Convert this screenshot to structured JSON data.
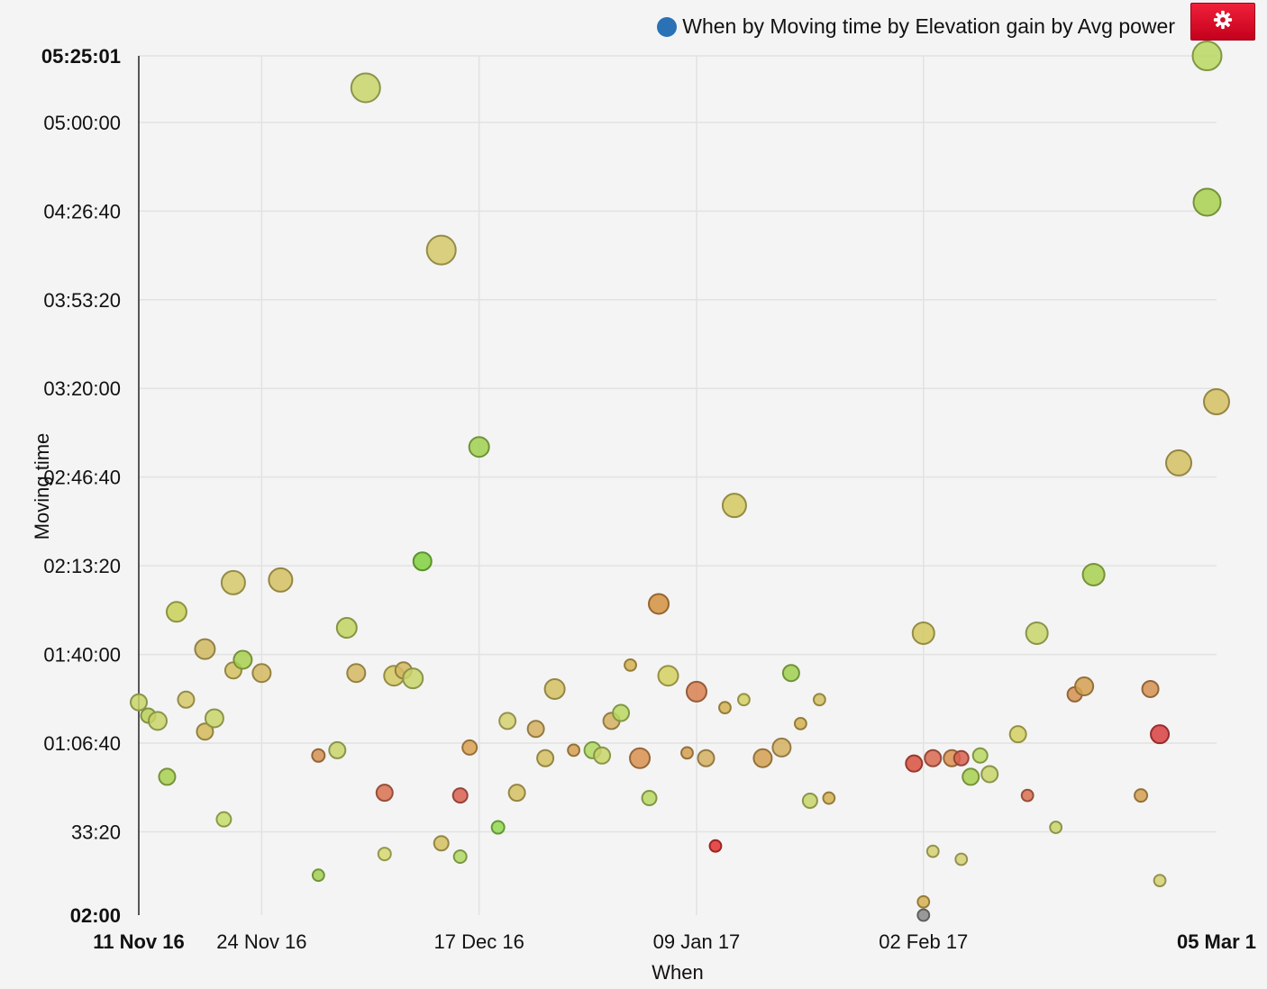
{
  "legend": {
    "label": "When by Moving time by Elevation gain by Avg power",
    "dot_color": "#2a72b5"
  },
  "settings": {
    "icon": "gear-icon",
    "color": "#e0102a"
  },
  "chart_data": {
    "type": "scatter",
    "title": "",
    "xlabel": "When",
    "ylabel": "Moving time",
    "x_axis": {
      "type": "date",
      "range": [
        "2016-11-11",
        "2017-03-05"
      ],
      "ticks": [
        {
          "value": "2016-11-11",
          "label": "11 Nov 16",
          "bold": true
        },
        {
          "value": "2016-11-24",
          "label": "24 Nov 16",
          "bold": false
        },
        {
          "value": "2016-12-17",
          "label": "17 Dec 16",
          "bold": false
        },
        {
          "value": "2017-01-09",
          "label": "09 Jan 17",
          "bold": false
        },
        {
          "value": "2017-02-02",
          "label": "02 Feb 17",
          "bold": false
        },
        {
          "value": "2017-03-05",
          "label": "05 Mar 1",
          "bold": true
        }
      ]
    },
    "y_axis": {
      "range": [
        "00:02:00",
        "05:25:01"
      ],
      "ticks": [
        {
          "value": "00:02:00",
          "label": "02:00",
          "bold": true
        },
        {
          "value": "00:33:20",
          "label": "33:20",
          "bold": false
        },
        {
          "value": "01:06:40",
          "label": "01:06:40",
          "bold": false
        },
        {
          "value": "01:40:00",
          "label": "01:40:00",
          "bold": false
        },
        {
          "value": "02:13:20",
          "label": "02:13:20",
          "bold": false
        },
        {
          "value": "02:46:40",
          "label": "02:46:40",
          "bold": false
        },
        {
          "value": "03:20:00",
          "label": "03:20:00",
          "bold": false
        },
        {
          "value": "03:53:20",
          "label": "03:53:20",
          "bold": false
        },
        {
          "value": "04:26:40",
          "label": "04:26:40",
          "bold": false
        },
        {
          "value": "05:00:00",
          "label": "05:00:00",
          "bold": false
        },
        {
          "value": "05:25:01",
          "label": "05:25:01",
          "bold": true
        }
      ]
    },
    "grid": true,
    "legend_position": "top-right",
    "size_encoding": "Elevation gain",
    "color_encoding": "Avg power",
    "points": [
      {
        "x": "2016-11-11",
        "y": "01:22:00",
        "size": 0.25,
        "color": "#c8d468"
      },
      {
        "x": "2016-11-12",
        "y": "01:17:00",
        "size": 0.2,
        "color": "#b8d058"
      },
      {
        "x": "2016-11-13",
        "y": "01:15:00",
        "size": 0.3,
        "color": "#c8d468"
      },
      {
        "x": "2016-11-14",
        "y": "00:54:00",
        "size": 0.25,
        "color": "#a8d050"
      },
      {
        "x": "2016-11-15",
        "y": "01:56:00",
        "size": 0.35,
        "color": "#c8d058"
      },
      {
        "x": "2016-11-16",
        "y": "01:23:00",
        "size": 0.25,
        "color": "#d4c868"
      },
      {
        "x": "2016-11-18",
        "y": "01:42:00",
        "size": 0.35,
        "color": "#d0b860"
      },
      {
        "x": "2016-11-18",
        "y": "01:11:00",
        "size": 0.25,
        "color": "#d4b858"
      },
      {
        "x": "2016-11-19",
        "y": "01:16:00",
        "size": 0.3,
        "color": "#c8d468"
      },
      {
        "x": "2016-11-20",
        "y": "00:38:00",
        "size": 0.2,
        "color": "#c4dc68"
      },
      {
        "x": "2016-11-21",
        "y": "02:07:00",
        "size": 0.45,
        "color": "#d4c868"
      },
      {
        "x": "2016-11-21",
        "y": "01:34:00",
        "size": 0.25,
        "color": "#d4c060"
      },
      {
        "x": "2016-11-22",
        "y": "01:38:00",
        "size": 0.3,
        "color": "#a8d050"
      },
      {
        "x": "2016-11-24",
        "y": "01:33:00",
        "size": 0.3,
        "color": "#d4b860"
      },
      {
        "x": "2016-11-26",
        "y": "02:08:00",
        "size": 0.45,
        "color": "#d4c060"
      },
      {
        "x": "2016-11-30",
        "y": "01:02:00",
        "size": 0.15,
        "color": "#d49050"
      },
      {
        "x": "2016-11-30",
        "y": "00:17:00",
        "size": 0.12,
        "color": "#a0d050"
      },
      {
        "x": "2016-12-02",
        "y": "01:04:00",
        "size": 0.25,
        "color": "#c8d468"
      },
      {
        "x": "2016-12-03",
        "y": "01:50:00",
        "size": 0.35,
        "color": "#c0d460"
      },
      {
        "x": "2016-12-04",
        "y": "01:33:00",
        "size": 0.3,
        "color": "#d4b860"
      },
      {
        "x": "2016-12-05",
        "y": "05:13:00",
        "size": 0.6,
        "color": "#c8d468"
      },
      {
        "x": "2016-12-07",
        "y": "00:48:00",
        "size": 0.25,
        "color": "#d87050"
      },
      {
        "x": "2016-12-07",
        "y": "00:25:00",
        "size": 0.15,
        "color": "#d4d870"
      },
      {
        "x": "2016-12-08",
        "y": "01:32:00",
        "size": 0.35,
        "color": "#d4c860"
      },
      {
        "x": "2016-12-09",
        "y": "01:34:00",
        "size": 0.25,
        "color": "#d4b860"
      },
      {
        "x": "2016-12-10",
        "y": "01:31:00",
        "size": 0.35,
        "color": "#c8d468"
      },
      {
        "x": "2016-12-11",
        "y": "02:15:00",
        "size": 0.3,
        "color": "#80d040"
      },
      {
        "x": "2016-12-13",
        "y": "04:12:00",
        "size": 0.6,
        "color": "#d4c868"
      },
      {
        "x": "2016-12-13",
        "y": "00:29:00",
        "size": 0.2,
        "color": "#d4c060"
      },
      {
        "x": "2016-12-15",
        "y": "00:24:00",
        "size": 0.15,
        "color": "#b0d860"
      },
      {
        "x": "2016-12-15",
        "y": "00:47:00",
        "size": 0.2,
        "color": "#d86050"
      },
      {
        "x": "2016-12-16",
        "y": "01:05:00",
        "size": 0.2,
        "color": "#d8a050"
      },
      {
        "x": "2016-12-17",
        "y": "02:58:00",
        "size": 0.35,
        "color": "#a0d050"
      },
      {
        "x": "2016-12-19",
        "y": "00:35:00",
        "size": 0.15,
        "color": "#90d850"
      },
      {
        "x": "2016-12-20",
        "y": "01:15:00",
        "size": 0.25,
        "color": "#d4d070"
      },
      {
        "x": "2016-12-21",
        "y": "00:48:00",
        "size": 0.25,
        "color": "#d4c060"
      },
      {
        "x": "2016-12-23",
        "y": "01:12:00",
        "size": 0.25,
        "color": "#d4b060"
      },
      {
        "x": "2016-12-24",
        "y": "01:01:00",
        "size": 0.25,
        "color": "#d4c060"
      },
      {
        "x": "2016-12-25",
        "y": "01:27:00",
        "size": 0.35,
        "color": "#d4c060"
      },
      {
        "x": "2016-12-27",
        "y": "01:04:00",
        "size": 0.12,
        "color": "#d4a050"
      },
      {
        "x": "2016-12-29",
        "y": "01:04:00",
        "size": 0.25,
        "color": "#b0d860"
      },
      {
        "x": "2016-12-30",
        "y": "01:02:00",
        "size": 0.25,
        "color": "#c8d468"
      },
      {
        "x": "2016-12-31",
        "y": "01:15:00",
        "size": 0.25,
        "color": "#d4b060"
      },
      {
        "x": "2017-01-01",
        "y": "01:18:00",
        "size": 0.25,
        "color": "#b8d860"
      },
      {
        "x": "2017-01-02",
        "y": "01:36:00",
        "size": 0.12,
        "color": "#d4b050"
      },
      {
        "x": "2017-01-03",
        "y": "01:01:00",
        "size": 0.35,
        "color": "#d89050"
      },
      {
        "x": "2017-01-04",
        "y": "00:46:00",
        "size": 0.2,
        "color": "#b8d860"
      },
      {
        "x": "2017-01-05",
        "y": "01:59:00",
        "size": 0.35,
        "color": "#d49040"
      },
      {
        "x": "2017-01-06",
        "y": "01:32:00",
        "size": 0.35,
        "color": "#d4d060"
      },
      {
        "x": "2017-01-08",
        "y": "01:03:00",
        "size": 0.12,
        "color": "#d4a050"
      },
      {
        "x": "2017-01-09",
        "y": "01:26:00",
        "size": 0.35,
        "color": "#d88050"
      },
      {
        "x": "2017-01-10",
        "y": "01:01:00",
        "size": 0.25,
        "color": "#d4b060"
      },
      {
        "x": "2017-01-11",
        "y": "00:28:00",
        "size": 0.12,
        "color": "#e03030"
      },
      {
        "x": "2017-01-12",
        "y": "01:20:00",
        "size": 0.12,
        "color": "#d4b050"
      },
      {
        "x": "2017-01-13",
        "y": "02:36:00",
        "size": 0.45,
        "color": "#d4c860"
      },
      {
        "x": "2017-01-14",
        "y": "01:23:00",
        "size": 0.12,
        "color": "#d4d060"
      },
      {
        "x": "2017-01-16",
        "y": "01:01:00",
        "size": 0.3,
        "color": "#d4a050"
      },
      {
        "x": "2017-01-18",
        "y": "01:05:00",
        "size": 0.3,
        "color": "#d4b060"
      },
      {
        "x": "2017-01-19",
        "y": "01:33:00",
        "size": 0.25,
        "color": "#a0d050"
      },
      {
        "x": "2017-01-20",
        "y": "01:14:00",
        "size": 0.12,
        "color": "#d4b050"
      },
      {
        "x": "2017-01-21",
        "y": "00:45:00",
        "size": 0.2,
        "color": "#c8d468"
      },
      {
        "x": "2017-01-22",
        "y": "01:23:00",
        "size": 0.12,
        "color": "#d4c060"
      },
      {
        "x": "2017-01-23",
        "y": "00:46:00",
        "size": 0.12,
        "color": "#d4b050"
      },
      {
        "x": "2017-02-01",
        "y": "00:59:00",
        "size": 0.25,
        "color": "#d85040"
      },
      {
        "x": "2017-02-02",
        "y": "00:07:00",
        "size": 0.12,
        "color": "#d4b050"
      },
      {
        "x": "2017-02-02",
        "y": "00:02:00",
        "size": 0.12,
        "color": "#888888"
      },
      {
        "x": "2017-02-02",
        "y": "01:48:00",
        "size": 0.4,
        "color": "#d4c860"
      },
      {
        "x": "2017-02-03",
        "y": "01:01:00",
        "size": 0.25,
        "color": "#d86850"
      },
      {
        "x": "2017-02-03",
        "y": "00:26:00",
        "size": 0.12,
        "color": "#d4d070"
      },
      {
        "x": "2017-02-05",
        "y": "01:01:00",
        "size": 0.25,
        "color": "#d89050"
      },
      {
        "x": "2017-02-06",
        "y": "01:01:00",
        "size": 0.2,
        "color": "#d86050"
      },
      {
        "x": "2017-02-06",
        "y": "00:23:00",
        "size": 0.12,
        "color": "#d4d070"
      },
      {
        "x": "2017-02-07",
        "y": "00:54:00",
        "size": 0.25,
        "color": "#a8d050"
      },
      {
        "x": "2017-02-08",
        "y": "01:02:00",
        "size": 0.2,
        "color": "#b8d860"
      },
      {
        "x": "2017-02-09",
        "y": "00:55:00",
        "size": 0.25,
        "color": "#c8d468"
      },
      {
        "x": "2017-02-12",
        "y": "01:10:00",
        "size": 0.25,
        "color": "#d4d060"
      },
      {
        "x": "2017-02-13",
        "y": "00:47:00",
        "size": 0.12,
        "color": "#d87050"
      },
      {
        "x": "2017-02-14",
        "y": "01:48:00",
        "size": 0.4,
        "color": "#c8d468"
      },
      {
        "x": "2017-02-16",
        "y": "00:35:00",
        "size": 0.12,
        "color": "#c8d468"
      },
      {
        "x": "2017-02-18",
        "y": "01:25:00",
        "size": 0.2,
        "color": "#d49050"
      },
      {
        "x": "2017-02-19",
        "y": "01:28:00",
        "size": 0.3,
        "color": "#d4a050"
      },
      {
        "x": "2017-02-20",
        "y": "02:10:00",
        "size": 0.4,
        "color": "#a8d050"
      },
      {
        "x": "2017-02-25",
        "y": "00:47:00",
        "size": 0.15,
        "color": "#d4a050"
      },
      {
        "x": "2017-02-26",
        "y": "01:27:00",
        "size": 0.25,
        "color": "#d49050"
      },
      {
        "x": "2017-02-27",
        "y": "01:10:00",
        "size": 0.3,
        "color": "#d84040"
      },
      {
        "x": "2017-02-27",
        "y": "00:15:00",
        "size": 0.12,
        "color": "#d4d070"
      },
      {
        "x": "2017-03-01",
        "y": "02:52:00",
        "size": 0.5,
        "color": "#d4c060"
      },
      {
        "x": "2017-03-04",
        "y": "04:30:00",
        "size": 0.55,
        "color": "#a8d050"
      },
      {
        "x": "2017-03-04",
        "y": "05:25:00",
        "size": 0.6,
        "color": "#b8d860"
      },
      {
        "x": "2017-03-05",
        "y": "03:15:00",
        "size": 0.5,
        "color": "#d4c060"
      }
    ]
  }
}
